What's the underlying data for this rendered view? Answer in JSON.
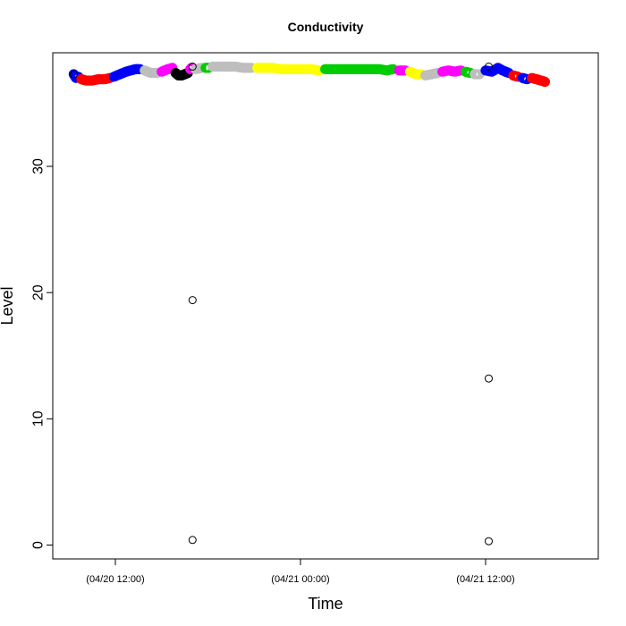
{
  "chart_data": {
    "type": "scatter",
    "title": "Conductivity",
    "xlabel": "Time",
    "ylabel": "Level",
    "ylim": [
      -1.1,
      39
    ],
    "yticks": [
      0,
      10,
      20,
      30
    ],
    "xlim_hours_from": "04/20 12:00",
    "xticks": [
      {
        "label": "(04/20 12:00)",
        "hour": 0
      },
      {
        "label": "(04/21 00:00)",
        "hour": 12
      },
      {
        "label": "(04/21 12:00)",
        "hour": 24
      }
    ],
    "grid": false,
    "legend": "none",
    "colors": {
      "blue": "#0000ff",
      "red": "#ff0000",
      "gray": "#bebebe",
      "magenta": "#ff00ff",
      "black": "#000000",
      "green": "#00cd00",
      "yellow": "#ffff00"
    },
    "segments": [
      {
        "color": "blue",
        "points": [
          [
            -2.7,
            37.3
          ],
          [
            -2.55,
            37.0
          ],
          [
            -2.4,
            37.1
          ]
        ]
      },
      {
        "color": "red",
        "points": [
          [
            -2.2,
            36.9
          ],
          [
            -1.9,
            36.8
          ],
          [
            -1.5,
            36.8
          ],
          [
            -1.1,
            36.9
          ],
          [
            -0.7,
            36.9
          ],
          [
            -0.35,
            37.0
          ]
        ]
      },
      {
        "color": "blue",
        "points": [
          [
            -0.1,
            37.1
          ],
          [
            0.3,
            37.3
          ],
          [
            0.7,
            37.5
          ],
          [
            1.0,
            37.6
          ],
          [
            1.3,
            37.7
          ],
          [
            1.6,
            37.7
          ]
        ]
      },
      {
        "color": "gray",
        "points": [
          [
            1.9,
            37.6
          ],
          [
            2.3,
            37.4
          ],
          [
            2.7,
            37.4
          ]
        ]
      },
      {
        "color": "magenta",
        "points": [
          [
            3.0,
            37.5
          ],
          [
            3.4,
            37.7
          ],
          [
            3.7,
            37.8
          ]
        ]
      },
      {
        "color": "black",
        "points": [
          [
            3.9,
            37.4
          ],
          [
            4.1,
            37.2
          ],
          [
            4.3,
            37.2
          ],
          [
            4.5,
            37.3
          ],
          [
            4.7,
            37.4
          ]
        ]
      },
      {
        "color": "magenta",
        "points": [
          [
            4.85,
            37.7
          ],
          [
            4.95,
            37.8
          ]
        ]
      },
      {
        "color": "gray",
        "points": [
          [
            5.2,
            37.7
          ],
          [
            5.6,
            37.8
          ]
        ]
      },
      {
        "color": "green",
        "points": [
          [
            5.85,
            37.8
          ],
          [
            6.05,
            37.8
          ]
        ]
      },
      {
        "color": "gray",
        "points": [
          [
            6.3,
            37.9
          ],
          [
            6.8,
            37.9
          ],
          [
            7.3,
            37.9
          ],
          [
            7.8,
            37.9
          ],
          [
            8.3,
            37.8
          ],
          [
            8.8,
            37.8
          ]
        ]
      },
      {
        "color": "yellow",
        "points": [
          [
            9.2,
            37.8
          ],
          [
            9.7,
            37.8
          ],
          [
            10.2,
            37.8
          ],
          [
            10.7,
            37.7
          ],
          [
            11.2,
            37.7
          ],
          [
            11.7,
            37.7
          ],
          [
            12.2,
            37.7
          ],
          [
            12.7,
            37.7
          ],
          [
            13.2,
            37.6
          ]
        ]
      },
      {
        "color": "green",
        "points": [
          [
            13.6,
            37.7
          ],
          [
            14.1,
            37.7
          ],
          [
            14.6,
            37.7
          ],
          [
            15.1,
            37.7
          ],
          [
            15.6,
            37.7
          ],
          [
            16.1,
            37.7
          ],
          [
            16.6,
            37.7
          ],
          [
            17.1,
            37.7
          ],
          [
            17.6,
            37.6
          ],
          [
            18.0,
            37.7
          ]
        ]
      },
      {
        "color": "magenta",
        "points": [
          [
            18.4,
            37.6
          ],
          [
            18.8,
            37.6
          ]
        ]
      },
      {
        "color": "yellow",
        "points": [
          [
            19.1,
            37.5
          ],
          [
            19.5,
            37.3
          ],
          [
            19.8,
            37.3
          ]
        ]
      },
      {
        "color": "gray",
        "points": [
          [
            20.1,
            37.2
          ],
          [
            20.5,
            37.3
          ],
          [
            20.9,
            37.4
          ]
        ]
      },
      {
        "color": "magenta",
        "points": [
          [
            21.2,
            37.5
          ],
          [
            21.6,
            37.6
          ],
          [
            22.0,
            37.5
          ],
          [
            22.4,
            37.6
          ]
        ]
      },
      {
        "color": "green",
        "points": [
          [
            22.7,
            37.5
          ],
          [
            23.0,
            37.4
          ]
        ]
      },
      {
        "color": "gray",
        "points": [
          [
            23.3,
            37.3
          ],
          [
            23.6,
            37.3
          ]
        ]
      },
      {
        "color": "blue",
        "points": [
          [
            24.0,
            37.6
          ],
          [
            24.4,
            37.5
          ],
          [
            24.8,
            37.8
          ],
          [
            25.1,
            37.6
          ],
          [
            25.5,
            37.4
          ]
        ]
      },
      {
        "color": "red",
        "points": [
          [
            25.8,
            37.2
          ],
          [
            26.1,
            37.1
          ]
        ]
      },
      {
        "color": "blue",
        "points": [
          [
            26.4,
            37.0
          ],
          [
            26.7,
            36.9
          ]
        ]
      },
      {
        "color": "red",
        "points": [
          [
            27.0,
            37.0
          ],
          [
            27.3,
            36.9
          ],
          [
            27.6,
            36.8
          ],
          [
            27.85,
            36.7
          ]
        ]
      }
    ],
    "outliers": [
      {
        "x": 5.0,
        "y": 19.4
      },
      {
        "x": 5.0,
        "y": 0.4
      },
      {
        "x": 24.2,
        "y": 13.2
      },
      {
        "x": 24.2,
        "y": 0.3
      },
      {
        "x": -2.7,
        "y": 37.3
      },
      {
        "x": 5.0,
        "y": 37.9
      },
      {
        "x": 24.2,
        "y": 37.9
      }
    ]
  }
}
